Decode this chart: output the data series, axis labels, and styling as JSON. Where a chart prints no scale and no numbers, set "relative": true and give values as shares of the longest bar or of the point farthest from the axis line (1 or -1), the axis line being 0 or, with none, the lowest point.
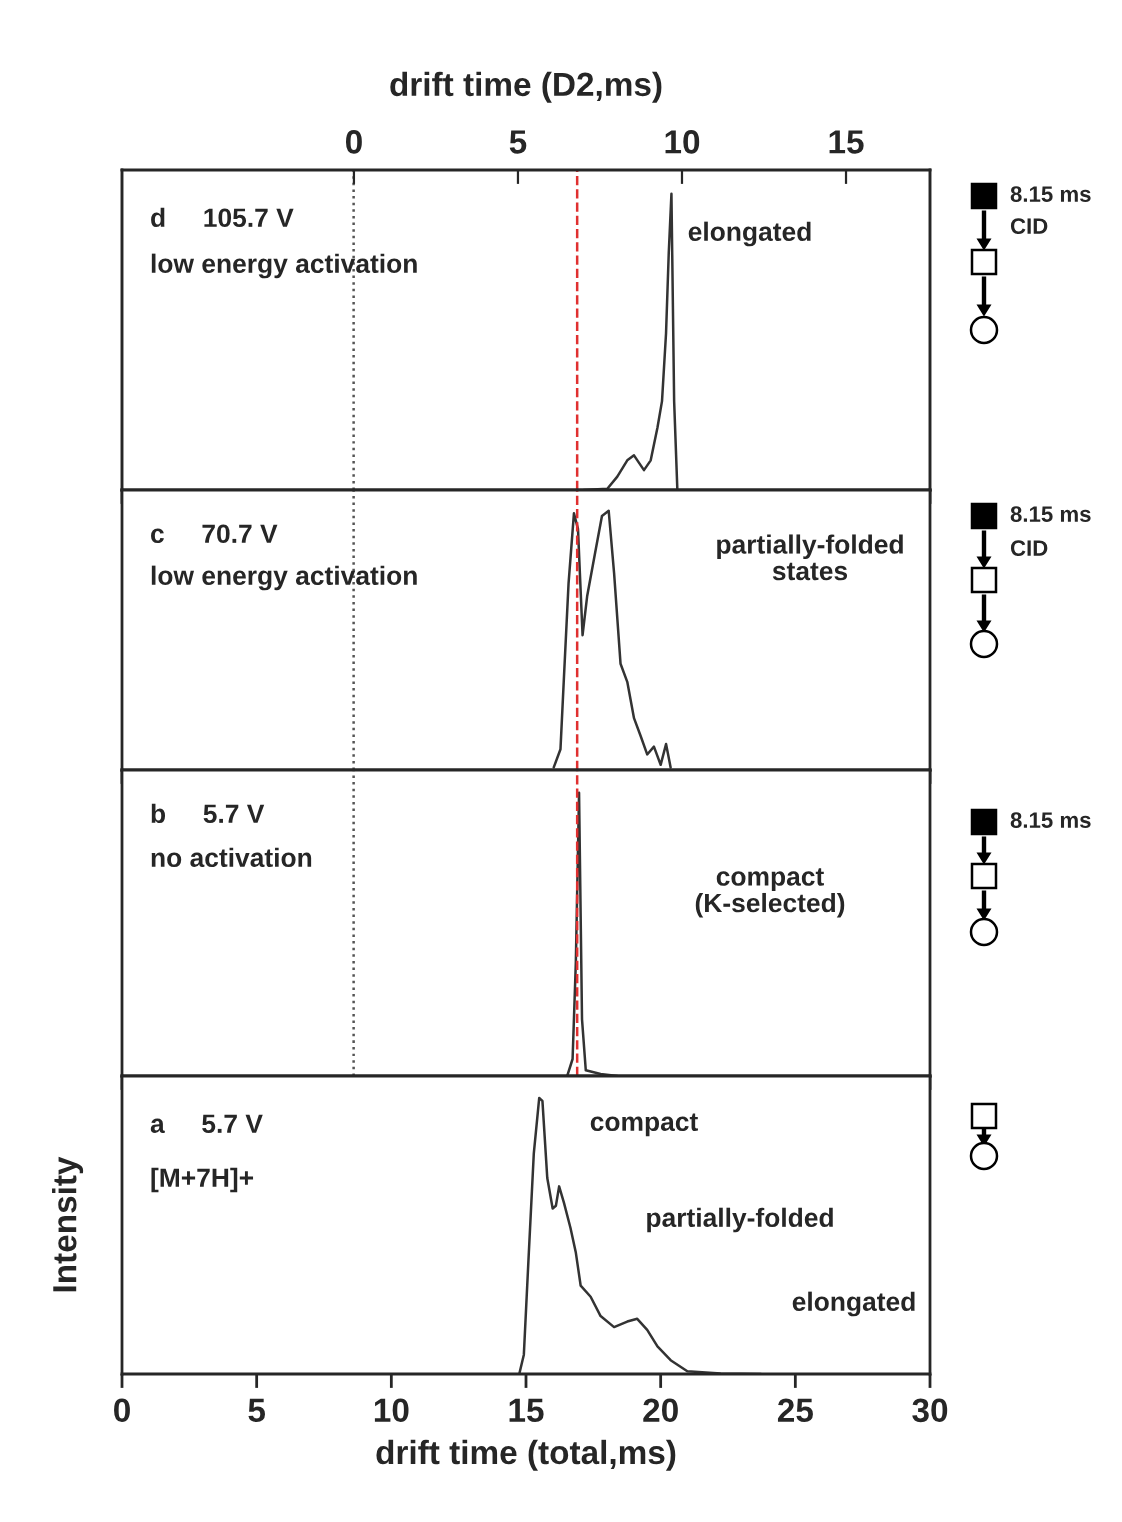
{
  "chart_data": [
    {
      "type": "line",
      "x2label": "drift time (D2,ms)",
      "x2lim": [
        -7.07,
        17.56
      ],
      "x2ticks": [
        0,
        5,
        10,
        15
      ],
      "xlim": [
        0,
        30
      ],
      "xticks": [
        0,
        5,
        10,
        15,
        20,
        25,
        30
      ],
      "tick_labels": false,
      "relative": true,
      "series": [
        {
          "color": "#333333",
          "x": [
            17.15,
            18.02,
            18.39,
            18.76,
            19.01,
            19.21,
            19.38,
            19.63,
            19.88,
            20.05,
            20.2,
            20.3,
            20.4,
            20.5,
            20.62
          ],
          "values": [
            0,
            0.004,
            0.045,
            0.1,
            0.117,
            0.09,
            0.067,
            0.1,
            0.21,
            0.3,
            0.53,
            0.8,
            1.0,
            0.3,
            0
          ]
        }
      ],
      "ref_lines": [
        {
          "axis": "x",
          "value": 8.6,
          "color": "#555555",
          "line_style": "dotted"
        },
        {
          "axis": "x",
          "value": 16.9,
          "color": "#e03030",
          "line_style": "dashed"
        }
      ],
      "annotations": [
        "d     105.7 V",
        "low energy activation",
        "elongated",
        "8.15 ms",
        "CID"
      ]
    },
    {
      "type": "line",
      "xlim": [
        0,
        30
      ],
      "xticks": [
        0,
        5,
        10,
        15,
        20,
        25,
        30
      ],
      "tick_labels": false,
      "relative": true,
      "series": [
        {
          "color": "#333333",
          "x": [
            16.03,
            16.28,
            16.41,
            16.58,
            16.78,
            16.93,
            17.1,
            17.27,
            17.57,
            17.82,
            18.07,
            18.27,
            18.51,
            18.76,
            19.01,
            19.26,
            19.5,
            19.75,
            20.0,
            20.2,
            20.37
          ],
          "values": [
            0.01,
            0.08,
            0.36,
            0.72,
            0.99,
            0.93,
            0.52,
            0.67,
            0.84,
            0.98,
            1.0,
            0.76,
            0.41,
            0.34,
            0.2,
            0.13,
            0.06,
            0.09,
            0.02,
            0.1,
            0.01
          ]
        }
      ],
      "ref_lines": [
        {
          "axis": "x",
          "value": 8.6,
          "color": "#555555",
          "line_style": "dotted"
        },
        {
          "axis": "x",
          "value": 16.9,
          "color": "#e03030",
          "line_style": "dashed"
        }
      ],
      "annotations": [
        "c     70.7 V",
        "low energy activation",
        "partially-folded\nstates",
        "8.15 ms",
        "CID"
      ]
    },
    {
      "type": "line",
      "xlim": [
        0,
        30
      ],
      "xticks": [
        0,
        5,
        10,
        15,
        20,
        25,
        30
      ],
      "tick_labels": false,
      "relative": true,
      "series": [
        {
          "color": "#333333",
          "x": [
            16.53,
            16.73,
            16.85,
            16.97,
            17.08,
            17.22,
            17.77,
            18.39
          ],
          "values": [
            0,
            0.06,
            0.4,
            1.0,
            0.2,
            0.02,
            0.007,
            0
          ]
        }
      ],
      "ref_lines": [
        {
          "axis": "x",
          "value": 8.6,
          "color": "#555555",
          "line_style": "dotted"
        },
        {
          "axis": "x",
          "value": 16.9,
          "color": "#e03030",
          "line_style": "dashed"
        }
      ],
      "annotations": [
        "b     5.7 V",
        "no activation",
        "compact\n(K-selected)",
        "8.15 ms"
      ]
    },
    {
      "type": "line",
      "xlabel": "drift time (total,ms)",
      "ylabel": "Intensity",
      "xlim": [
        0,
        30
      ],
      "xticks": [
        0,
        5,
        10,
        15,
        20,
        25,
        30
      ],
      "relative": true,
      "series": [
        {
          "color": "#333333",
          "x": [
            14.75,
            14.92,
            15.09,
            15.29,
            15.49,
            15.61,
            15.79,
            15.99,
            16.11,
            16.23,
            16.41,
            16.65,
            16.85,
            17.03,
            17.4,
            17.77,
            18.27,
            18.76,
            19.13,
            19.5,
            19.88,
            20.37,
            20.99,
            22.23,
            23.72
          ],
          "values": [
            0,
            0.07,
            0.41,
            0.8,
            1.0,
            0.99,
            0.71,
            0.6,
            0.61,
            0.68,
            0.62,
            0.53,
            0.44,
            0.32,
            0.28,
            0.21,
            0.17,
            0.19,
            0.2,
            0.16,
            0.1,
            0.05,
            0.01,
            0.002,
            0
          ]
        }
      ],
      "annotations": [
        "a     5.7 V",
        "[M+7H]+",
        "compact",
        "partially-folded",
        "elongated"
      ]
    }
  ]
}
